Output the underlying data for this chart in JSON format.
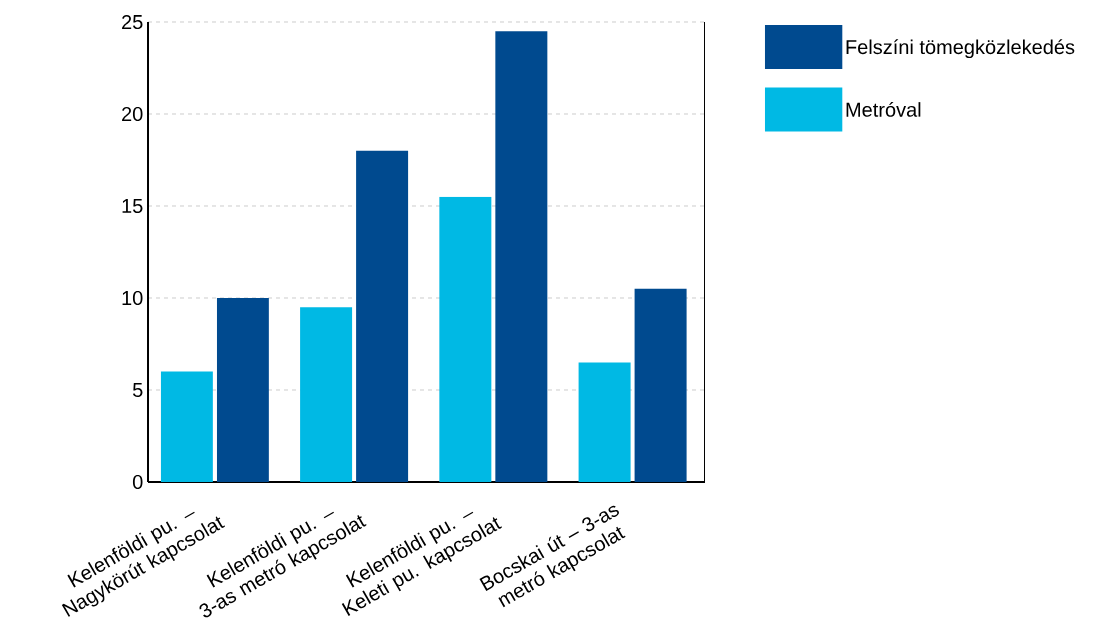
{
  "chart_data": {
    "type": "bar",
    "categories": [
      "Kelenföldi pu. – Nagykörút kapcsolat",
      "Kelenföldi pu. – 3-as metró kapcsolat",
      "Kelenföldi pu. – Keleti pu. kapcsolat",
      "Bocskai út – 3-as metró kapcsolat"
    ],
    "series": [
      {
        "name": "Metróval",
        "color": "#00b9e4",
        "values": [
          6,
          9.5,
          15.5,
          6.5
        ]
      },
      {
        "name": "Felszíni tömegközlekedés",
        "color": "#004a8f",
        "values": [
          10,
          18,
          24.5,
          10.5
        ]
      }
    ],
    "ylim": [
      0,
      25
    ],
    "yticks": [
      0,
      5,
      10,
      15,
      20,
      25
    ],
    "grid": "y",
    "legend": "top right"
  }
}
